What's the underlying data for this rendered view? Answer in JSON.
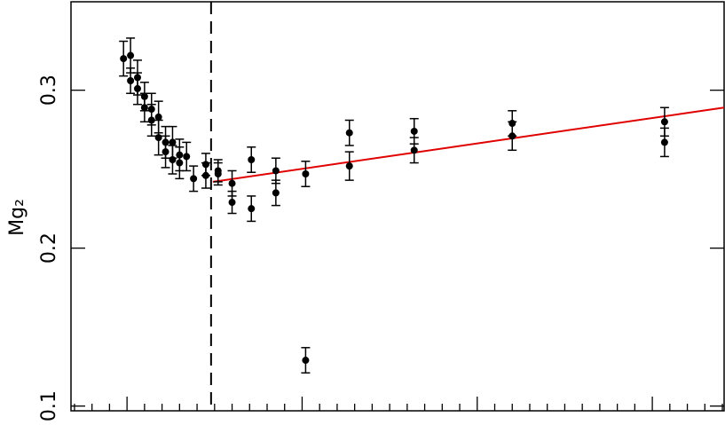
{
  "chart_data": {
    "type": "scatter",
    "ylabel": "Mg₂",
    "x": [
      0.98,
      1.02,
      1.02,
      1.06,
      1.06,
      1.1,
      1.1,
      1.14,
      1.14,
      1.18,
      1.18,
      1.22,
      1.22,
      1.26,
      1.26,
      1.3,
      1.3,
      1.34,
      1.38,
      1.45,
      1.45,
      1.52,
      1.52,
      1.6,
      1.6,
      1.71,
      1.71,
      1.85,
      1.85,
      2.02,
      2.02,
      2.27,
      2.27,
      2.64,
      2.64,
      3.2,
      3.2,
      4.07,
      4.07
    ],
    "values": [
      0.32,
      0.322,
      0.306,
      0.308,
      0.301,
      0.296,
      0.289,
      0.288,
      0.281,
      0.283,
      0.27,
      0.267,
      0.261,
      0.267,
      0.256,
      0.259,
      0.254,
      0.258,
      0.244,
      0.253,
      0.246,
      0.249,
      0.247,
      0.241,
      0.229,
      0.256,
      0.225,
      0.249,
      0.235,
      0.247,
      0.129,
      0.273,
      0.252,
      0.274,
      0.262,
      0.279,
      0.271,
      0.28,
      0.267
    ],
    "errors": [
      0.011,
      0.011,
      0.008,
      0.011,
      0.01,
      0.009,
      0.009,
      0.01,
      0.01,
      0.01,
      0.011,
      0.01,
      0.01,
      0.01,
      0.009,
      0.01,
      0.01,
      0.009,
      0.008,
      0.007,
      0.008,
      0.007,
      0.007,
      0.008,
      0.007,
      0.008,
      0.008,
      0.008,
      0.008,
      0.008,
      0.008,
      0.008,
      0.009,
      0.008,
      0.008,
      0.008,
      0.009,
      0.009,
      0.009
    ],
    "color": "#000000",
    "fit": {
      "x": [
        1.49,
        4.41
      ],
      "values": [
        0.242,
        0.289
      ],
      "color": "#e00000"
    },
    "vline": 1.48,
    "xlim": [
      0.68,
      4.41
    ],
    "ylim": [
      0.097,
      0.356
    ],
    "xticks": [
      0.7,
      0.8,
      0.9,
      1.0,
      1.1,
      1.2,
      1.3,
      1.4,
      1.5,
      1.6,
      1.7,
      1.8,
      1.9,
      2.0,
      2.1,
      2.2,
      2.3,
      2.4,
      2.5,
      2.6,
      2.7,
      2.8,
      2.9,
      3.0,
      3.1,
      3.2,
      3.3,
      3.4,
      3.5,
      3.6,
      3.7,
      3.8,
      3.9,
      4.0,
      4.1,
      4.2,
      4.3,
      4.4
    ],
    "xticks_major": [
      1,
      2,
      3,
      4
    ],
    "yticks": [
      0.1,
      0.2,
      0.3
    ]
  }
}
